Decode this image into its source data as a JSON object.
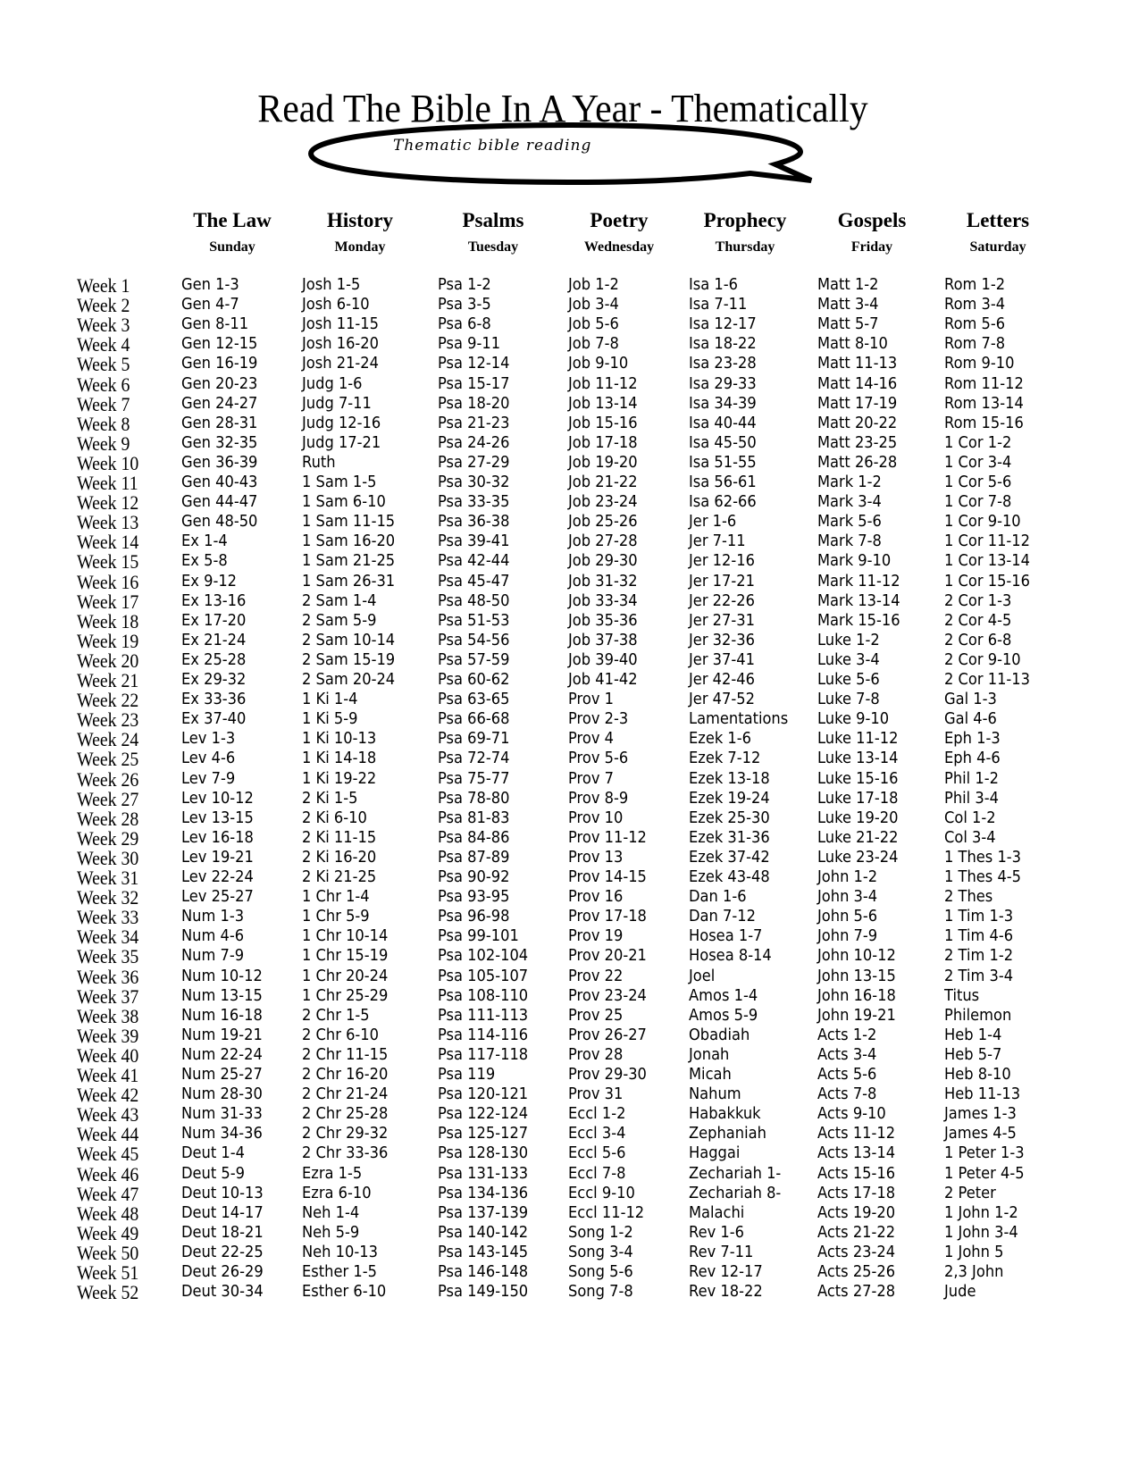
{
  "title": "Read The Bible In A Year - Thematically",
  "subtitle": "Thematic bible reading",
  "columns": [
    {
      "category": "The Law",
      "day": "Sunday"
    },
    {
      "category": "History",
      "day": "Monday"
    },
    {
      "category": "Psalms",
      "day": "Tuesday"
    },
    {
      "category": "Poetry",
      "day": "Wednesday"
    },
    {
      "category": "Prophecy",
      "day": "Thursday"
    },
    {
      "category": "Gospels",
      "day": "Friday"
    },
    {
      "category": "Letters",
      "day": "Saturday"
    }
  ],
  "rows": [
    {
      "week": "Week 1",
      "readings": [
        "Gen 1-3",
        "Josh 1-5",
        "Psa 1-2",
        "Job 1-2",
        "Isa 1-6",
        "Matt 1-2",
        "Rom 1-2"
      ]
    },
    {
      "week": "Week 2",
      "readings": [
        "Gen 4-7",
        "Josh 6-10",
        "Psa 3-5",
        "Job 3-4",
        "Isa 7-11",
        "Matt 3-4",
        "Rom 3-4"
      ]
    },
    {
      "week": "Week 3",
      "readings": [
        "Gen 8-11",
        "Josh 11-15",
        "Psa 6-8",
        "Job 5-6",
        "Isa 12-17",
        "Matt 5-7",
        "Rom 5-6"
      ]
    },
    {
      "week": "Week 4",
      "readings": [
        "Gen 12-15",
        "Josh 16-20",
        "Psa 9-11",
        "Job 7-8",
        "Isa 18-22",
        "Matt 8-10",
        "Rom 7-8"
      ]
    },
    {
      "week": "Week 5",
      "readings": [
        "Gen 16-19",
        "Josh 21-24",
        "Psa 12-14",
        "Job 9-10",
        "Isa 23-28",
        "Matt 11-13",
        "Rom 9-10"
      ]
    },
    {
      "week": "Week 6",
      "readings": [
        "Gen 20-23",
        "Judg 1-6",
        "Psa 15-17",
        "Job 11-12",
        "Isa 29-33",
        "Matt 14-16",
        "Rom 11-12"
      ]
    },
    {
      "week": "Week 7",
      "readings": [
        "Gen 24-27",
        "Judg 7-11",
        "Psa 18-20",
        "Job 13-14",
        "Isa 34-39",
        "Matt 17-19",
        "Rom 13-14"
      ]
    },
    {
      "week": "Week 8",
      "readings": [
        "Gen 28-31",
        "Judg 12-16",
        "Psa 21-23",
        "Job 15-16",
        "Isa 40-44",
        "Matt 20-22",
        "Rom 15-16"
      ]
    },
    {
      "week": "Week 9",
      "readings": [
        "Gen 32-35",
        "Judg 17-21",
        "Psa 24-26",
        "Job 17-18",
        "Isa 45-50",
        "Matt 23-25",
        "1 Cor 1-2"
      ]
    },
    {
      "week": "Week 10",
      "readings": [
        "Gen 36-39",
        "Ruth",
        "Psa 27-29",
        "Job 19-20",
        "Isa 51-55",
        "Matt 26-28",
        "1 Cor 3-4"
      ]
    },
    {
      "week": "Week 11",
      "readings": [
        "Gen 40-43",
        "1 Sam 1-5",
        "Psa 30-32",
        "Job 21-22",
        "Isa 56-61",
        "Mark 1-2",
        "1 Cor 5-6"
      ]
    },
    {
      "week": "Week 12",
      "readings": [
        "Gen 44-47",
        "1 Sam 6-10",
        "Psa 33-35",
        "Job 23-24",
        "Isa 62-66",
        "Mark 3-4",
        "1 Cor 7-8"
      ]
    },
    {
      "week": "Week 13",
      "readings": [
        "Gen 48-50",
        "1 Sam 11-15",
        "Psa 36-38",
        "Job 25-26",
        "Jer 1-6",
        "Mark 5-6",
        "1 Cor 9-10"
      ]
    },
    {
      "week": "Week 14",
      "readings": [
        "Ex 1-4",
        "1 Sam 16-20",
        "Psa 39-41",
        "Job 27-28",
        "Jer 7-11",
        "Mark 7-8",
        "1 Cor 11-12"
      ]
    },
    {
      "week": "Week 15",
      "readings": [
        "Ex 5-8",
        "1 Sam 21-25",
        "Psa 42-44",
        "Job 29-30",
        "Jer 12-16",
        "Mark 9-10",
        "1 Cor 13-14"
      ]
    },
    {
      "week": "Week 16",
      "readings": [
        "Ex 9-12",
        "1 Sam 26-31",
        "Psa 45-47",
        "Job 31-32",
        "Jer 17-21",
        "Mark 11-12",
        "1 Cor 15-16"
      ]
    },
    {
      "week": "Week 17",
      "readings": [
        "Ex 13-16",
        "2 Sam 1-4",
        "Psa 48-50",
        "Job 33-34",
        "Jer 22-26",
        "Mark 13-14",
        "2 Cor 1-3"
      ]
    },
    {
      "week": "Week 18",
      "readings": [
        "Ex 17-20",
        "2 Sam 5-9",
        "Psa 51-53",
        "Job 35-36",
        "Jer 27-31",
        "Mark 15-16",
        "2 Cor 4-5"
      ]
    },
    {
      "week": "Week 19",
      "readings": [
        "Ex 21-24",
        "2 Sam 10-14",
        "Psa 54-56",
        "Job 37-38",
        "Jer 32-36",
        "Luke 1-2",
        "2 Cor 6-8"
      ]
    },
    {
      "week": "Week 20",
      "readings": [
        "Ex 25-28",
        "2 Sam 15-19",
        "Psa 57-59",
        "Job 39-40",
        "Jer 37-41",
        "Luke 3-4",
        "2 Cor 9-10"
      ]
    },
    {
      "week": "Week 21",
      "readings": [
        "Ex 29-32",
        "2 Sam 20-24",
        "Psa 60-62",
        "Job 41-42",
        "Jer 42-46",
        "Luke 5-6",
        "2 Cor 11-13"
      ]
    },
    {
      "week": "Week 22",
      "readings": [
        "Ex 33-36",
        "1 Ki 1-4",
        "Psa 63-65",
        "Prov 1",
        "Jer 47-52",
        "Luke 7-8",
        "Gal 1-3"
      ]
    },
    {
      "week": "Week 23",
      "readings": [
        "Ex 37-40",
        "1 Ki 5-9",
        "Psa 66-68",
        "Prov 2-3",
        "Lamentations",
        "Luke 9-10",
        "Gal 4-6"
      ]
    },
    {
      "week": "Week 24",
      "readings": [
        "Lev 1-3",
        "1 Ki 10-13",
        "Psa 69-71",
        "Prov 4",
        "Ezek 1-6",
        "Luke 11-12",
        "Eph 1-3"
      ]
    },
    {
      "week": "Week 25",
      "readings": [
        "Lev 4-6",
        "1 Ki 14-18",
        "Psa 72-74",
        "Prov 5-6",
        "Ezek 7-12",
        "Luke 13-14",
        "Eph 4-6"
      ]
    },
    {
      "week": "Week 26",
      "readings": [
        "Lev 7-9",
        "1 Ki 19-22",
        "Psa 75-77",
        "Prov 7",
        "Ezek 13-18",
        "Luke 15-16",
        "Phil 1-2"
      ]
    },
    {
      "week": "Week 27",
      "readings": [
        "Lev 10-12",
        "2 Ki 1-5",
        "Psa 78-80",
        "Prov 8-9",
        "Ezek 19-24",
        "Luke 17-18",
        "Phil 3-4"
      ]
    },
    {
      "week": "Week 28",
      "readings": [
        "Lev 13-15",
        "2 Ki 6-10",
        "Psa 81-83",
        "Prov 10",
        "Ezek 25-30",
        "Luke 19-20",
        "Col 1-2"
      ]
    },
    {
      "week": "Week 29",
      "readings": [
        "Lev 16-18",
        "2 Ki 11-15",
        "Psa 84-86",
        "Prov 11-12",
        "Ezek 31-36",
        "Luke 21-22",
        "Col 3-4"
      ]
    },
    {
      "week": "Week 30",
      "readings": [
        "Lev 19-21",
        "2 Ki 16-20",
        "Psa 87-89",
        "Prov 13",
        "Ezek 37-42",
        "Luke 23-24",
        "1 Thes 1-3"
      ]
    },
    {
      "week": "Week 31",
      "readings": [
        "Lev 22-24",
        "2 Ki 21-25",
        "Psa 90-92",
        "Prov 14-15",
        "Ezek 43-48",
        "John 1-2",
        "1 Thes 4-5"
      ]
    },
    {
      "week": "Week 32",
      "readings": [
        "Lev 25-27",
        "1 Chr 1-4",
        "Psa 93-95",
        "Prov 16",
        "Dan 1-6",
        "John 3-4",
        "2 Thes"
      ]
    },
    {
      "week": "Week 33",
      "readings": [
        "Num 1-3",
        "1 Chr 5-9",
        "Psa 96-98",
        "Prov 17-18",
        "Dan 7-12",
        "John 5-6",
        "1 Tim 1-3"
      ]
    },
    {
      "week": "Week 34",
      "readings": [
        "Num 4-6",
        "1 Chr 10-14",
        "Psa 99-101",
        "Prov 19",
        "Hosea 1-7",
        "John 7-9",
        "1 Tim 4-6"
      ]
    },
    {
      "week": "Week 35",
      "readings": [
        "Num 7-9",
        "1 Chr 15-19",
        "Psa 102-104",
        "Prov 20-21",
        "Hosea 8-14",
        "John 10-12",
        "2 Tim 1-2"
      ]
    },
    {
      "week": "Week 36",
      "readings": [
        "Num 10-12",
        "1 Chr 20-24",
        "Psa 105-107",
        "Prov 22",
        "Joel",
        "John 13-15",
        "2 Tim 3-4"
      ]
    },
    {
      "week": "Week 37",
      "readings": [
        "Num 13-15",
        "1 Chr 25-29",
        "Psa 108-110",
        "Prov 23-24",
        "Amos 1-4",
        "John 16-18",
        "Titus"
      ]
    },
    {
      "week": "Week 38",
      "readings": [
        "Num 16-18",
        "2 Chr 1-5",
        "Psa 111-113",
        "Prov 25",
        "Amos 5-9",
        "John 19-21",
        "Philemon"
      ]
    },
    {
      "week": "Week 39",
      "readings": [
        "Num 19-21",
        "2 Chr 6-10",
        "Psa 114-116",
        "Prov 26-27",
        "Obadiah",
        "Acts 1-2",
        "Heb 1-4"
      ]
    },
    {
      "week": "Week 40",
      "readings": [
        "Num 22-24",
        "2 Chr 11-15",
        "Psa 117-118",
        "Prov 28",
        " Jonah",
        "Acts 3-4",
        "Heb 5-7"
      ]
    },
    {
      "week": "Week 41",
      "readings": [
        "Num 25-27",
        "2 Chr 16-20",
        "Psa 119",
        "Prov 29-30",
        "Micah",
        "Acts 5-6",
        "Heb 8-10"
      ]
    },
    {
      "week": "Week 42",
      "readings": [
        "Num 28-30",
        "2 Chr 21-24",
        "Psa 120-121",
        "Prov 31",
        "Nahum",
        "Acts 7-8",
        "Heb 11-13"
      ]
    },
    {
      "week": "Week 43",
      "readings": [
        "Num 31-33",
        "2 Chr 25-28",
        "Psa 122-124",
        "Eccl 1-2",
        "Habakkuk",
        "Acts 9-10",
        "James 1-3"
      ]
    },
    {
      "week": "Week 44",
      "readings": [
        "Num 34-36",
        "2 Chr 29-32",
        "Psa 125-127",
        "Eccl 3-4",
        "Zephaniah",
        "Acts 11-12",
        "James 4-5"
      ]
    },
    {
      "week": "Week 45",
      "readings": [
        "Deut 1-4",
        "2 Chr 33-36",
        "Psa 128-130",
        "Eccl 5-6",
        "Haggai",
        "Acts 13-14",
        "1 Peter 1-3"
      ]
    },
    {
      "week": "Week 46",
      "readings": [
        "Deut 5-9",
        "Ezra 1-5",
        "Psa 131-133",
        "Eccl 7-8",
        "Zechariah 1-",
        "Acts 15-16",
        "1 Peter 4-5"
      ]
    },
    {
      "week": "Week 47",
      "readings": [
        "Deut 10-13",
        "Ezra 6-10",
        "Psa 134-136",
        "Eccl 9-10",
        "Zechariah 8-",
        "Acts 17-18",
        "2 Peter"
      ]
    },
    {
      "week": "Week 48",
      "readings": [
        "Deut 14-17",
        "Neh 1-4",
        "Psa 137-139",
        "Eccl 11-12",
        "Malachi",
        "Acts 19-20",
        "1 John 1-2"
      ]
    },
    {
      "week": "Week 49",
      "readings": [
        "Deut 18-21",
        "Neh 5-9",
        "Psa 140-142",
        "Song 1-2",
        "Rev 1-6",
        "Acts 21-22",
        "1 John 3-4"
      ]
    },
    {
      "week": "Week 50",
      "readings": [
        "Deut 22-25",
        "Neh 10-13",
        "Psa 143-145",
        "Song 3-4",
        "Rev 7-11",
        "Acts 23-24",
        "1 John 5"
      ]
    },
    {
      "week": "Week 51",
      "readings": [
        "Deut 26-29",
        "Esther 1-5",
        "Psa 146-148",
        "Song 5-6",
        "Rev 12-17",
        "Acts 25-26",
        "2,3 John"
      ]
    },
    {
      "week": "Week 52",
      "readings": [
        "Deut 30-34",
        "Esther 6-10",
        "Psa 149-150",
        "Song 7-8",
        "Rev 18-22",
        "Acts 27-28",
        "Jude"
      ]
    }
  ]
}
